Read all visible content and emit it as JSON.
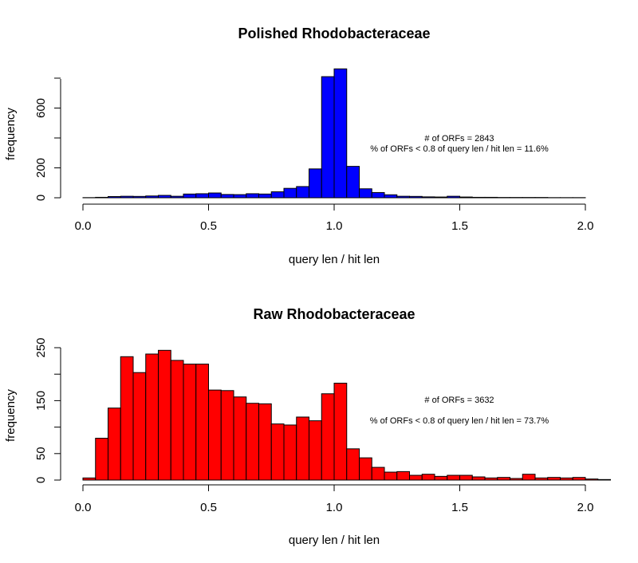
{
  "chart_data": [
    {
      "type": "bar",
      "title": "Polished Rhodobacteraceae",
      "xlabel": "query len / hit len",
      "ylabel": "frequency",
      "color": "#0000ff",
      "bin_width": 0.05,
      "x_start": 0.0,
      "xlim": [
        0.0,
        2.0
      ],
      "x_ticks": [
        "0.0",
        "0.5",
        "1.0",
        "1.5",
        "2.0"
      ],
      "ylim": [
        0,
        800
      ],
      "y_ticks": [
        "0",
        "200",
        "600"
      ],
      "values": [
        1,
        3,
        8,
        10,
        9,
        12,
        16,
        10,
        25,
        27,
        32,
        22,
        21,
        27,
        25,
        40,
        63,
        75,
        193,
        810,
        862,
        210,
        60,
        35,
        20,
        10,
        9,
        6,
        5,
        10,
        5,
        3,
        3,
        2,
        2,
        2,
        2,
        1,
        1,
        1
      ],
      "annotations": [
        "# of ORFs = 2843",
        "% of ORFs < 0.8 of query len / hit len = 11.6%"
      ]
    },
    {
      "type": "bar",
      "title": "Raw Rhodobacteraceae",
      "xlabel": "query len / hit len",
      "ylabel": "frequency",
      "color": "#ff0000",
      "bin_width": 0.05,
      "x_start": 0.0,
      "xlim": [
        0.0,
        2.0
      ],
      "x_ticks": [
        "0.0",
        "0.5",
        "1.0",
        "1.5",
        "2.0"
      ],
      "ylim": [
        0,
        250
      ],
      "y_ticks": [
        "0",
        "50",
        "150",
        "250"
      ],
      "values": [
        4,
        79,
        136,
        233,
        203,
        238,
        245,
        226,
        219,
        219,
        170,
        169,
        157,
        145,
        144,
        106,
        104,
        119,
        112,
        163,
        183,
        59,
        42,
        24,
        15,
        16,
        9,
        11,
        7,
        9,
        9,
        6,
        4,
        5,
        3,
        11,
        4,
        5,
        4,
        5,
        2,
        1
      ],
      "annotations": [
        "# of ORFs = 3632",
        "% of ORFs < 0.8 of query len / hit len = 73.7%"
      ]
    }
  ]
}
